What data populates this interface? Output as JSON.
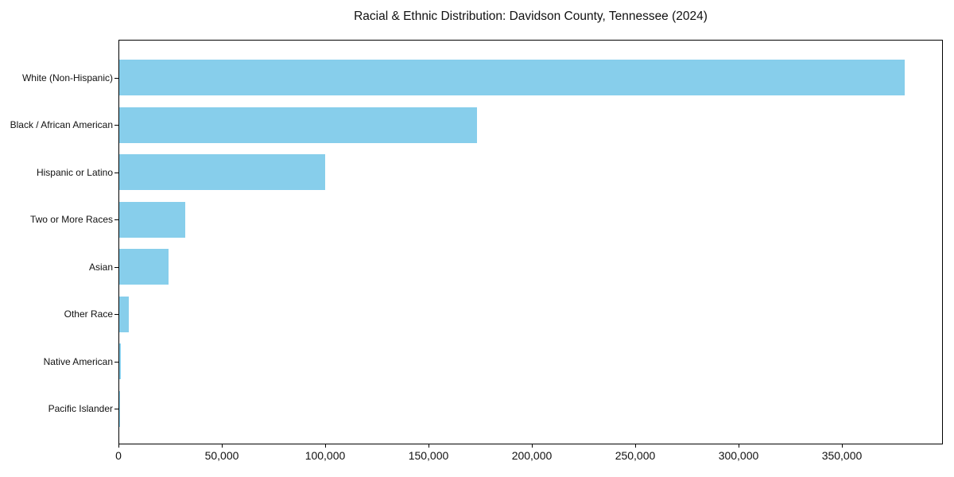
{
  "chart_data": {
    "type": "bar",
    "orientation": "horizontal",
    "title": "Racial & Ethnic Distribution: Davidson County, Tennessee (2024)",
    "categories": [
      "White (Non-Hispanic)",
      "Black / African American",
      "Hispanic or Latino",
      "Two or More Races",
      "Asian",
      "Other Race",
      "Native American",
      "Pacific Islander"
    ],
    "values": [
      380000,
      173000,
      99500,
      32000,
      24000,
      4500,
      700,
      200
    ],
    "bar_color": "#87CEEB",
    "frame_color": "#000000",
    "xlabel": "",
    "ylabel": "",
    "xlim": [
      0,
      399000
    ],
    "xticks": [
      0,
      50000,
      100000,
      150000,
      200000,
      250000,
      300000,
      350000
    ],
    "xtick_labels": [
      "0",
      "50,000",
      "100,000",
      "150,000",
      "200,000",
      "250,000",
      "300,000",
      "350,000"
    ],
    "grid": false,
    "legend": "none",
    "sort": "descending"
  }
}
